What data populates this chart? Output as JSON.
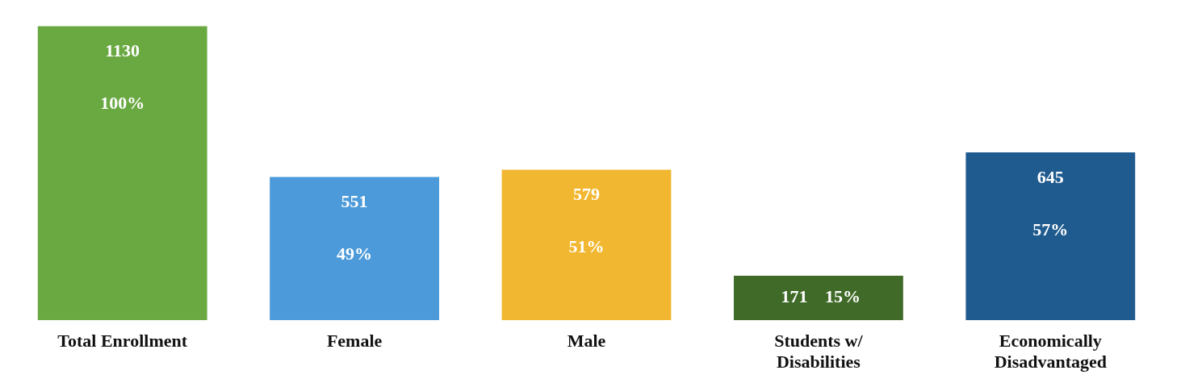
{
  "chart_data": {
    "type": "bar",
    "categories": [
      "Total Enrollment",
      "Female",
      "Male",
      "Students w/ Disabilities",
      "Economically Disadvantaged"
    ],
    "values": [
      1130,
      551,
      579,
      171,
      645
    ],
    "colors": [
      "#6aa842",
      "#4c9ad9",
      "#f2b731",
      "#3f6a27",
      "#1f5b8f"
    ],
    "data_labels": true,
    "annotations": [
      "100%",
      "49%",
      "51%",
      "15%",
      "57%"
    ],
    "grid": false,
    "legend": false
  }
}
